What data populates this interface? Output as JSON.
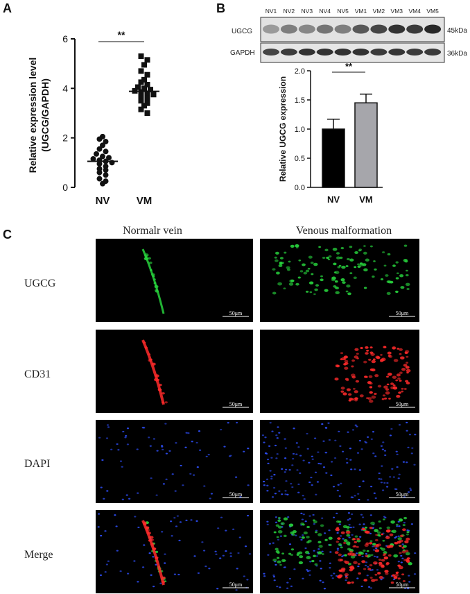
{
  "panel_labels": {
    "a": "A",
    "b": "B",
    "c": "C"
  },
  "panel_a": {
    "significance": "**",
    "chart_data": {
      "type": "scatter",
      "title": "",
      "xlabel": "",
      "ylabel": "Relative expression level",
      "ylabel2": "(UGCG/GAPDH)",
      "categories": [
        "NV",
        "VM"
      ],
      "ylim": [
        0,
        6
      ],
      "yticks": [
        "0",
        "2",
        "4",
        "6"
      ],
      "series": [
        {
          "category": "NV",
          "marker": "circle",
          "mean": 1.05,
          "values": [
            2.05,
            1.95,
            1.85,
            1.7,
            1.55,
            1.45,
            1.35,
            1.25,
            1.2,
            1.15,
            1.1,
            1.05,
            1.0,
            0.95,
            0.85,
            0.75,
            0.7,
            0.6,
            0.5,
            0.35,
            0.25,
            0.15
          ]
        },
        {
          "category": "VM",
          "marker": "square",
          "mean": 3.88,
          "values": [
            5.3,
            5.15,
            4.95,
            4.7,
            4.55,
            4.35,
            4.25,
            4.15,
            4.05,
            4.0,
            3.95,
            3.9,
            3.85,
            3.8,
            3.75,
            3.7,
            3.6,
            3.5,
            3.4,
            3.3,
            3.15,
            3.0
          ]
        }
      ]
    }
  },
  "panel_b": {
    "blot": {
      "lanes": [
        "NV1",
        "NV2",
        "NV3",
        "NV4",
        "NV5",
        "VM1",
        "VM2",
        "VM3",
        "VM4",
        "VM5"
      ],
      "rows": [
        {
          "label": "UGCG",
          "size": "45kDa",
          "intensity": [
            0.35,
            0.5,
            0.45,
            0.55,
            0.5,
            0.7,
            0.8,
            0.9,
            0.85,
            0.95
          ]
        },
        {
          "label": "GAPDH",
          "size": "36kDa",
          "intensity": [
            0.8,
            0.85,
            0.9,
            0.9,
            0.9,
            0.9,
            0.85,
            0.88,
            0.85,
            0.85
          ]
        }
      ]
    },
    "significance": "**",
    "chart_data": {
      "type": "bar",
      "title": "",
      "xlabel": "",
      "ylabel": "Relative UGCG expression",
      "categories": [
        "NV",
        "VM"
      ],
      "values": [
        1.0,
        1.45
      ],
      "errors": [
        0.17,
        0.15
      ],
      "colors": [
        "#000000",
        "#a6a6ab"
      ],
      "ylim": [
        0,
        2.0
      ],
      "yticks": [
        "0.0",
        "0.5",
        "1.0",
        "1.5",
        "2.0"
      ]
    }
  },
  "panel_c": {
    "columns": [
      "Normalr vein",
      "Venous malformation"
    ],
    "rows": [
      "UGCG",
      "CD31",
      "DAPI",
      "Merge"
    ],
    "scale_bar": "50μm",
    "row_colors": {
      "UGCG": "#27d13c",
      "CD31": "#ff2a2a",
      "DAPI": "#2f50ff"
    }
  }
}
